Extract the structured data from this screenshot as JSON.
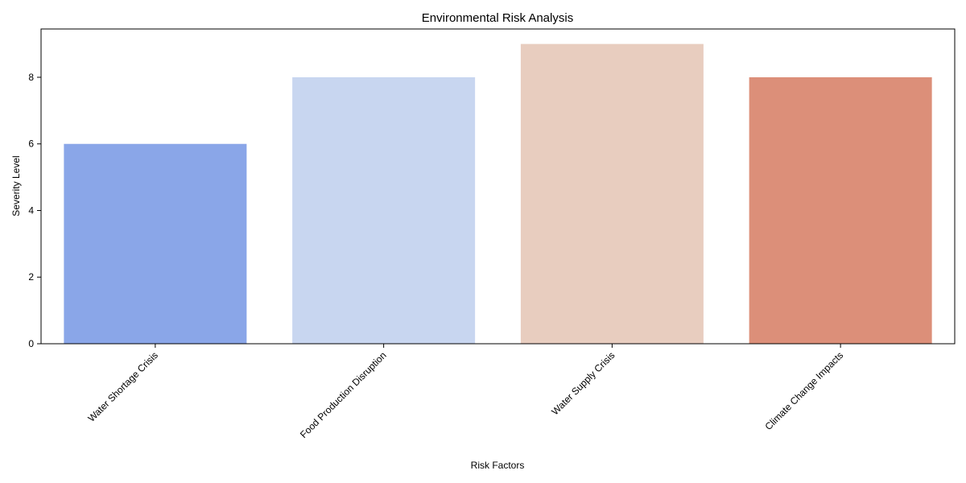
{
  "chart_data": {
    "type": "bar",
    "title": "Environmental Risk Analysis",
    "xlabel": "Risk Factors",
    "ylabel": "Severity Level",
    "categories": [
      "Water Shortage Crisis",
      "Food Production Disruption",
      "Water Supply Crisis",
      "Climate Change Impacts"
    ],
    "values": [
      6,
      8,
      9,
      8
    ],
    "ylim": [
      0,
      9.45
    ],
    "yticks": [
      0,
      2,
      4,
      6,
      8
    ],
    "grid": false,
    "colors": [
      "#8aa6e8",
      "#c8d6f0",
      "#e8cdbf",
      "#dc8f79"
    ]
  }
}
